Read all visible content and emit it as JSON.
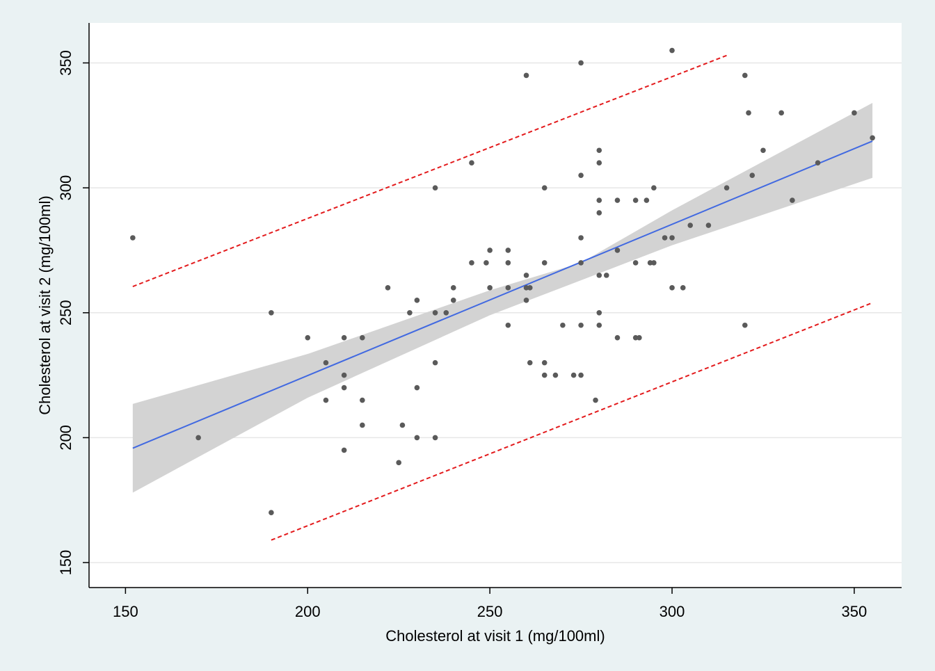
{
  "chart_data": {
    "type": "scatter",
    "title": "",
    "xlabel": "Cholesterol at visit 1 (mg/100ml)",
    "ylabel": "Cholesterol at visit 2 (mg/100ml)",
    "xlim": [
      140,
      363
    ],
    "ylim": [
      140,
      366
    ],
    "xticks": [
      150,
      200,
      250,
      300,
      350
    ],
    "yticks": [
      150,
      200,
      250,
      300,
      350
    ],
    "grid": true,
    "legend": "none",
    "colors": {
      "background": "#eaf2f3",
      "plot_area": "#ffffff",
      "gridline": "#e6e6e6",
      "points": "#5a5a5a",
      "fit_line": "#4169e1",
      "confidence_band": "#d3d3d3",
      "prediction_interval": "#e31a1c"
    },
    "scatter": {
      "points": [
        [
          152,
          280
        ],
        [
          170,
          200
        ],
        [
          190,
          250
        ],
        [
          190,
          170
        ],
        [
          200,
          240
        ],
        [
          205,
          230
        ],
        [
          205,
          215
        ],
        [
          210,
          240
        ],
        [
          210,
          225
        ],
        [
          210,
          220
        ],
        [
          210,
          195
        ],
        [
          215,
          240
        ],
        [
          215,
          215
        ],
        [
          215,
          205
        ],
        [
          222,
          260
        ],
        [
          225,
          190
        ],
        [
          226,
          205
        ],
        [
          228,
          250
        ],
        [
          230,
          255
        ],
        [
          230,
          220
        ],
        [
          230,
          200
        ],
        [
          235,
          300
        ],
        [
          235,
          250
        ],
        [
          235,
          230
        ],
        [
          235,
          200
        ],
        [
          238,
          250
        ],
        [
          240,
          260
        ],
        [
          240,
          255
        ],
        [
          245,
          310
        ],
        [
          245,
          270
        ],
        [
          249,
          270
        ],
        [
          250,
          275
        ],
        [
          250,
          260
        ],
        [
          255,
          275
        ],
        [
          255,
          270
        ],
        [
          255,
          260
        ],
        [
          255,
          245
        ],
        [
          260,
          345
        ],
        [
          260,
          265
        ],
        [
          260,
          260
        ],
        [
          260,
          255
        ],
        [
          261,
          260
        ],
        [
          261,
          230
        ],
        [
          265,
          300
        ],
        [
          265,
          270
        ],
        [
          265,
          230
        ],
        [
          265,
          225
        ],
        [
          268,
          225
        ],
        [
          270,
          245
        ],
        [
          273,
          225
        ],
        [
          275,
          350
        ],
        [
          275,
          305
        ],
        [
          275,
          280
        ],
        [
          275,
          270
        ],
        [
          275,
          245
        ],
        [
          275,
          225
        ],
        [
          279,
          215
        ],
        [
          280,
          315
        ],
        [
          280,
          310
        ],
        [
          280,
          295
        ],
        [
          280,
          290
        ],
        [
          280,
          265
        ],
        [
          280,
          250
        ],
        [
          280,
          245
        ],
        [
          282,
          265
        ],
        [
          285,
          295
        ],
        [
          285,
          275
        ],
        [
          285,
          240
        ],
        [
          290,
          295
        ],
        [
          290,
          270
        ],
        [
          290,
          240
        ],
        [
          291,
          240
        ],
        [
          293,
          295
        ],
        [
          294,
          270
        ],
        [
          295,
          300
        ],
        [
          295,
          270
        ],
        [
          298,
          280
        ],
        [
          300,
          355
        ],
        [
          300,
          280
        ],
        [
          300,
          260
        ],
        [
          303,
          260
        ],
        [
          305,
          285
        ],
        [
          310,
          285
        ],
        [
          315,
          300
        ],
        [
          320,
          345
        ],
        [
          320,
          245
        ],
        [
          321,
          330
        ],
        [
          322,
          305
        ],
        [
          325,
          315
        ],
        [
          330,
          330
        ],
        [
          333,
          295
        ],
        [
          340,
          310
        ],
        [
          350,
          330
        ],
        [
          355,
          320
        ]
      ]
    },
    "fit_line": {
      "x": [
        152,
        355
      ],
      "y": [
        195.8,
        318.7
      ]
    },
    "confidence_band": {
      "x": [
        152,
        200,
        250,
        275,
        300,
        355
      ],
      "lower": [
        178,
        216,
        249,
        263,
        277,
        304
      ],
      "upper": [
        213.5,
        233.5,
        259,
        270,
        291,
        334
      ]
    },
    "prediction_interval": {
      "upper": {
        "x": [
          152,
          315
        ],
        "y": [
          260.5,
          353
        ]
      },
      "lower": {
        "x": [
          190,
          355
        ],
        "y": [
          159,
          254
        ]
      }
    }
  }
}
